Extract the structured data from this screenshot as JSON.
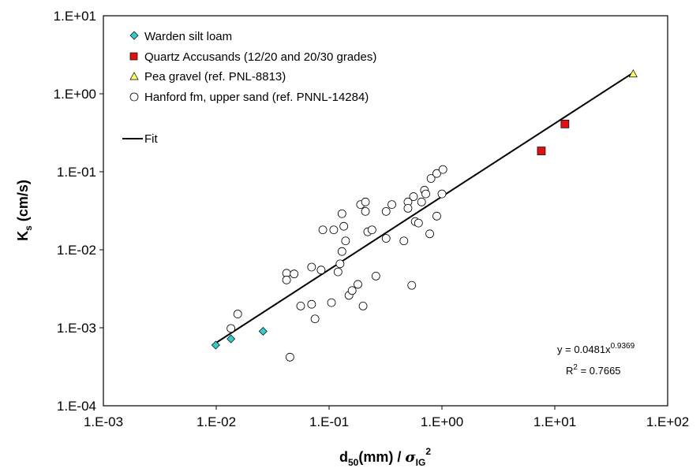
{
  "chart_data": {
    "type": "scatter",
    "x_scale": "log",
    "y_scale": "log",
    "xlim": [
      0.001,
      100
    ],
    "ylim": [
      0.0001,
      10
    ],
    "x_ticks": [
      "1.E-03",
      "1.E-02",
      "1.E-01",
      "1.E+00",
      "1.E+01",
      "1.E+02"
    ],
    "y_ticks": [
      "1.E-04",
      "1.E-03",
      "1.E-02",
      "1.E-01",
      "1.E+00",
      "1.E+01"
    ],
    "xlabel": {
      "main": "d",
      "sub1": "50",
      "mid": "(mm) / ",
      "sigma": "σ",
      "sub2": "IG",
      "sup": "2"
    },
    "ylabel": {
      "main": "K",
      "sub": "s",
      "rest": " (cm/s)"
    },
    "grid": false,
    "legend_position": "top-left",
    "series": [
      {
        "name": "Warden silt loam",
        "marker": "diamond",
        "color": "#33cccc",
        "points": [
          [
            0.0099,
            0.0006
          ],
          [
            0.0135,
            0.00072
          ],
          [
            0.026,
            0.0009
          ]
        ]
      },
      {
        "name": "Quartz Accusands (12/20 and 20/30 grades)",
        "marker": "square",
        "color": "#dd1111",
        "points": [
          [
            7.6,
            0.185
          ],
          [
            12.3,
            0.41
          ]
        ]
      },
      {
        "name": "Pea gravel (ref. PNL-8813)",
        "marker": "triangle",
        "color": "#ffff66",
        "points": [
          [
            49.5,
            1.8
          ]
        ]
      },
      {
        "name": "Hanford fm, upper sand (ref. PNNL-14284)",
        "marker": "circle",
        "color": "#ffffff",
        "points": [
          [
            0.0135,
            0.00098
          ],
          [
            0.0155,
            0.0015
          ],
          [
            0.042,
            0.005
          ],
          [
            0.042,
            0.0041
          ],
          [
            0.049,
            0.0049
          ],
          [
            0.056,
            0.0019
          ],
          [
            0.045,
            0.00042
          ],
          [
            0.07,
            0.006
          ],
          [
            0.07,
            0.002
          ],
          [
            0.075,
            0.0013
          ],
          [
            0.085,
            0.0055
          ],
          [
            0.088,
            0.018
          ],
          [
            0.11,
            0.018
          ],
          [
            0.105,
            0.0021
          ],
          [
            0.12,
            0.0052
          ],
          [
            0.125,
            0.0066
          ],
          [
            0.13,
            0.0095
          ],
          [
            0.135,
            0.02
          ],
          [
            0.13,
            0.029
          ],
          [
            0.14,
            0.013
          ],
          [
            0.15,
            0.0026
          ],
          [
            0.16,
            0.003
          ],
          [
            0.18,
            0.0036
          ],
          [
            0.19,
            0.038
          ],
          [
            0.2,
            0.0019
          ],
          [
            0.21,
            0.031
          ],
          [
            0.21,
            0.041
          ],
          [
            0.22,
            0.017
          ],
          [
            0.24,
            0.018
          ],
          [
            0.26,
            0.0046
          ],
          [
            0.32,
            0.014
          ],
          [
            0.32,
            0.031
          ],
          [
            0.36,
            0.038
          ],
          [
            0.46,
            0.013
          ],
          [
            0.5,
            0.041
          ],
          [
            0.5,
            0.034
          ],
          [
            0.54,
            0.0035
          ],
          [
            0.56,
            0.048
          ],
          [
            0.58,
            0.023
          ],
          [
            0.62,
            0.022
          ],
          [
            0.66,
            0.041
          ],
          [
            0.7,
            0.058
          ],
          [
            0.72,
            0.052
          ],
          [
            0.78,
            0.016
          ],
          [
            0.8,
            0.082
          ],
          [
            0.9,
            0.027
          ],
          [
            0.9,
            0.095
          ],
          [
            1.0,
            0.052
          ],
          [
            1.02,
            0.107
          ]
        ]
      }
    ],
    "fit": {
      "name": "Fit",
      "coefficient": 0.0481,
      "exponent": 0.9369,
      "x_range": [
        0.0099,
        49.5
      ],
      "equation_text": {
        "base": "y = 0.0481x",
        "power": "0.9369"
      },
      "r2_text": {
        "r": "R",
        "sup": "2",
        "value": " = 0.7665"
      }
    }
  }
}
